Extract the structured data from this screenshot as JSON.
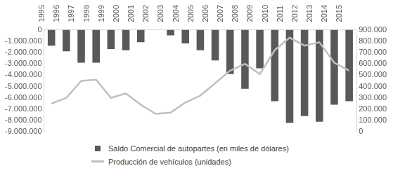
{
  "chart_data": {
    "type": "bar",
    "categories": [
      "1995",
      "1996",
      "1997",
      "1998",
      "1999",
      "2000",
      "2001",
      "2002",
      "2003",
      "2004",
      "2005",
      "2006",
      "2007",
      "2008",
      "2009",
      "2010",
      "2011",
      "2012",
      "2013",
      "2014",
      "2015"
    ],
    "series": [
      {
        "name": "Saldo Comercial de autopartes (en miles de dólares)",
        "type": "bar",
        "color": "#595959",
        "values": [
          -1400000,
          -1900000,
          -2900000,
          -2900000,
          -1700000,
          -1800000,
          -1100000,
          0,
          -500000,
          -1200000,
          -1800000,
          -2700000,
          -3900000,
          -5200000,
          -3400000,
          -6300000,
          -8200000,
          -7600000,
          -8100000,
          -6600000,
          -6300000
        ]
      },
      {
        "name": "Producción de vehículos (unidades)",
        "type": "line",
        "color": "#bfbfbf",
        "axis": "y2",
        "values": [
          250000,
          300000,
          450000,
          460000,
          300000,
          340000,
          240000,
          160000,
          170000,
          260000,
          320000,
          430000,
          540000,
          600000,
          510000,
          720000,
          830000,
          760000,
          790000,
          610000,
          540000
        ]
      }
    ],
    "ylim": [
      -9000000,
      0
    ],
    "yticks": [
      0,
      {
        "value": -1000000,
        "label": "-1.000.000"
      },
      {
        "value": -2000000,
        "label": "-2.000.000"
      },
      {
        "value": -3000000,
        "label": "-3.000.000"
      },
      {
        "value": -4000000,
        "label": "-4.000.000"
      },
      {
        "value": -5000000,
        "label": "-5.000.000"
      },
      {
        "value": -6000000,
        "label": "-6.000.000"
      },
      {
        "value": -7000000,
        "label": "-7.000.000"
      },
      {
        "value": -8000000,
        "label": "-8.000.000"
      },
      {
        "value": -9000000,
        "label": "-9.000.000"
      }
    ],
    "y2lim": [
      0,
      900000
    ],
    "y2ticks": [
      0,
      {
        "value": 100000,
        "label": "100.000"
      },
      {
        "value": 200000,
        "label": "200.000"
      },
      {
        "value": 300000,
        "label": "300.000"
      },
      {
        "value": 400000,
        "label": "400.000"
      },
      {
        "value": 500000,
        "label": "500.000"
      },
      {
        "value": 600000,
        "label": "600.000"
      },
      {
        "value": 700000,
        "label": "700.000"
      },
      {
        "value": 800000,
        "label": "800.000"
      },
      {
        "value": 900000,
        "label": "900.000"
      }
    ],
    "grid": false,
    "legend": "bottom"
  }
}
